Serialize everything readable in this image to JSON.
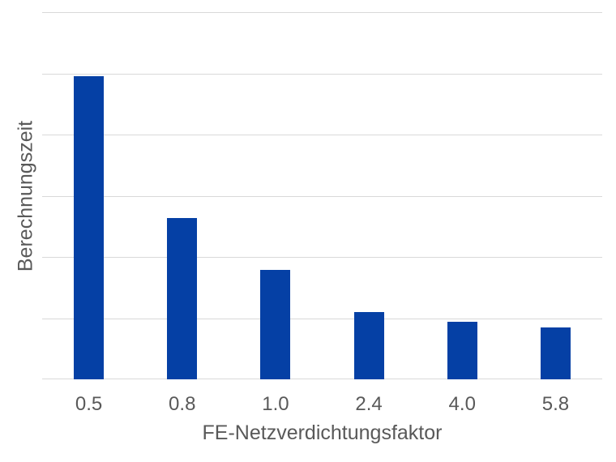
{
  "chart_data": {
    "type": "bar",
    "categories": [
      "0.5",
      "0.8",
      "1.0",
      "2.4",
      "4.0",
      "5.8"
    ],
    "values": [
      4.95,
      2.64,
      1.79,
      1.1,
      0.94,
      0.85
    ],
    "title": "",
    "xlabel": "FE-Netzverdichtungsfaktor",
    "ylabel": "Berechnungszeit",
    "ylim": [
      0,
      6
    ],
    "gridline_step": 1,
    "grid": true,
    "y_tick_labels_visible": false,
    "legend": false,
    "colors": {
      "bar": "#0540a5",
      "gridline": "#d9d9d9",
      "axis_text": "#595959",
      "background": "#ffffff"
    }
  }
}
